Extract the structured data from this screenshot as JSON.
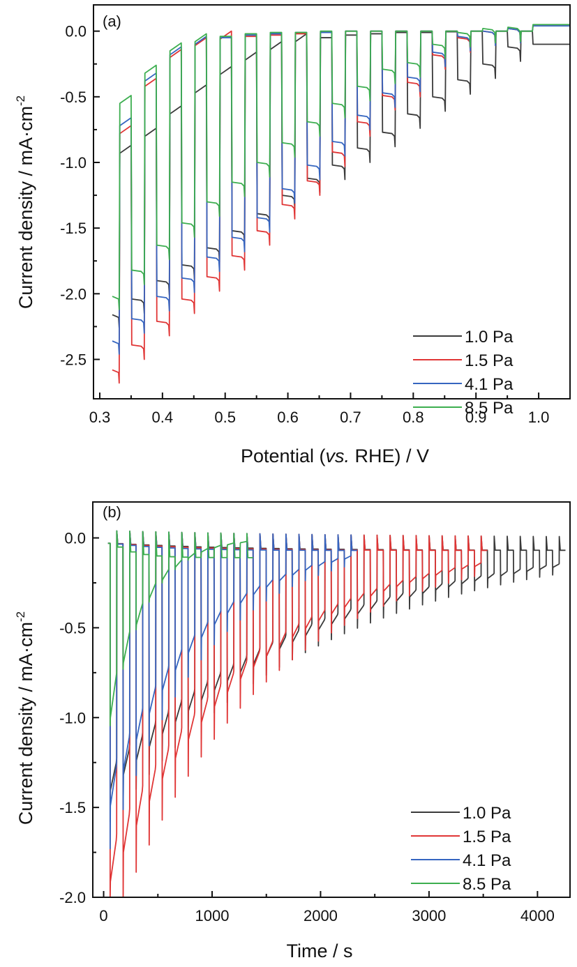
{
  "chart_data": [
    {
      "type": "line",
      "panel_label": "(a)",
      "title": "",
      "xlabel_parts": [
        "Potential (",
        "vs.",
        " RHE) / V"
      ],
      "ylabel": "Current density / mA·cm",
      "ylabel_sup": "-2",
      "xlim": [
        0.29,
        1.05
      ],
      "ylim": [
        -2.8,
        0.2
      ],
      "xticks": [
        0.3,
        0.4,
        0.5,
        0.6,
        0.7,
        0.8,
        0.9,
        1.0
      ],
      "xtick_labels": [
        "0.3",
        "0.4",
        "0.5",
        "0.6",
        "0.7",
        "0.8",
        "0.9",
        "1.0"
      ],
      "yticks": [
        0.0,
        -0.5,
        -1.0,
        -1.5,
        -2.0,
        -2.5
      ],
      "ytick_labels": [
        "0.0",
        "-0.5",
        "-1.0",
        "-1.5",
        "-2.0",
        "-2.5"
      ],
      "grid": false,
      "legend_position": "bottom-right",
      "description": "Chopped-light linear sweep; each light pulse spans ~0.02 V, dark intervals ~0.02 V",
      "pulse_starts_V": [
        0.33,
        0.37,
        0.41,
        0.45,
        0.49,
        0.53,
        0.57,
        0.61,
        0.65,
        0.69,
        0.73,
        0.77,
        0.81,
        0.85,
        0.89,
        0.93,
        0.97
      ],
      "pulse_width_V": 0.02,
      "series": [
        {
          "name": "1.0 Pa",
          "color": "#3a3a3a",
          "dark_values": [
            -0.93,
            -0.8,
            -0.63,
            -0.47,
            -0.33,
            -0.22,
            -0.14,
            -0.08,
            -0.05,
            -0.03,
            -0.02,
            -0.01,
            -0.01,
            -0.005,
            -0.0,
            0.0,
            0.0
          ],
          "light_values": [
            -2.18,
            -2.07,
            -1.93,
            -1.81,
            -1.68,
            -1.55,
            -1.42,
            -1.28,
            -1.15,
            -1.05,
            -0.92,
            -0.8,
            -0.66,
            -0.53,
            -0.4,
            -0.28,
            -0.15
          ]
        },
        {
          "name": "1.5 Pa",
          "color": "#e03535",
          "dark_values": [
            -0.78,
            -0.42,
            -0.2,
            -0.11,
            -0.06,
            -0.04,
            -0.03,
            -0.02,
            -0.01,
            -0.0,
            0.0,
            0.0,
            0.0,
            0.0,
            0.0,
            0.0,
            0.0
          ],
          "light_values": [
            -2.6,
            -2.42,
            -2.24,
            -2.07,
            -1.9,
            -1.74,
            -1.55,
            -1.35,
            -1.17,
            -0.95,
            -0.72,
            -0.52,
            -0.42,
            -0.21,
            -0.08,
            -0.03,
            -0.01
          ]
        },
        {
          "name": "4.1 Pa",
          "color": "#3565c0",
          "dark_values": [
            -0.72,
            -0.38,
            -0.18,
            -0.1,
            -0.05,
            -0.03,
            -0.02,
            -0.01,
            -0.01,
            0.0,
            0.0,
            0.0,
            0.0,
            0.0,
            0.0,
            0.0,
            0.0
          ],
          "light_values": [
            -2.38,
            -2.22,
            -2.05,
            -1.91,
            -1.75,
            -1.6,
            -1.45,
            -1.23,
            -1.05,
            -0.87,
            -0.67,
            -0.5,
            -0.38,
            -0.19,
            -0.07,
            -0.03,
            -0.01
          ]
        },
        {
          "name": "8.5 Pa",
          "color": "#3cae4f",
          "dark_values": [
            -0.55,
            -0.32,
            -0.15,
            -0.08,
            -0.04,
            -0.02,
            -0.01,
            -0.01,
            0.0,
            0.0,
            0.0,
            0.0,
            0.0,
            0.0,
            0.0,
            0.0,
            0.0
          ],
          "light_values": [
            -2.04,
            -1.85,
            -1.66,
            -1.49,
            -1.33,
            -1.18,
            -1.03,
            -0.88,
            -0.72,
            -0.58,
            -0.45,
            -0.32,
            -0.27,
            -0.13,
            -0.04,
            -0.01,
            0.0
          ]
        }
      ]
    },
    {
      "type": "line",
      "panel_label": "(b)",
      "title": "",
      "xlabel": "Time / s",
      "ylabel": "Current density / mA·cm",
      "ylabel_sup": "-2",
      "xlim": [
        -100,
        4300
      ],
      "ylim": [
        -2.0,
        0.2
      ],
      "xticks": [
        0,
        1000,
        2000,
        3000,
        4000
      ],
      "xtick_labels": [
        "0",
        "1000",
        "2000",
        "3000",
        "4000"
      ],
      "yticks": [
        0.0,
        -0.5,
        -1.0,
        -1.5,
        -2.0
      ],
      "ytick_labels": [
        "0.0",
        "-0.5",
        "-1.0",
        "-1.5",
        "-2.0"
      ],
      "grid": false,
      "legend_position": "bottom-right",
      "description": "Chopped-light chronoamperometry with ~120 s period; light-on current decays as photocurrent relaxes",
      "pulse_period_s": 120,
      "first_pulse_s": 60,
      "series": [
        {
          "name": "1.0 Pa",
          "color": "#3a3a3a",
          "end_s": 4300,
          "start_light": -1.45,
          "tau_s": 1900,
          "spike_extra": -0.18
        },
        {
          "name": "1.5 Pa",
          "color": "#e03535",
          "end_s": 3520,
          "start_light": -2.0,
          "tau_s": 1350,
          "spike_extra": -0.3
        },
        {
          "name": "4.1 Pa",
          "color": "#3565c0",
          "end_s": 2320,
          "start_light": -1.6,
          "tau_s": 850,
          "spike_extra": -0.25
        },
        {
          "name": "8.5 Pa",
          "color": "#3cae4f",
          "end_s": 1320,
          "start_light": -1.2,
          "tau_s": 330,
          "spike_extra": -0.05
        }
      ]
    }
  ]
}
